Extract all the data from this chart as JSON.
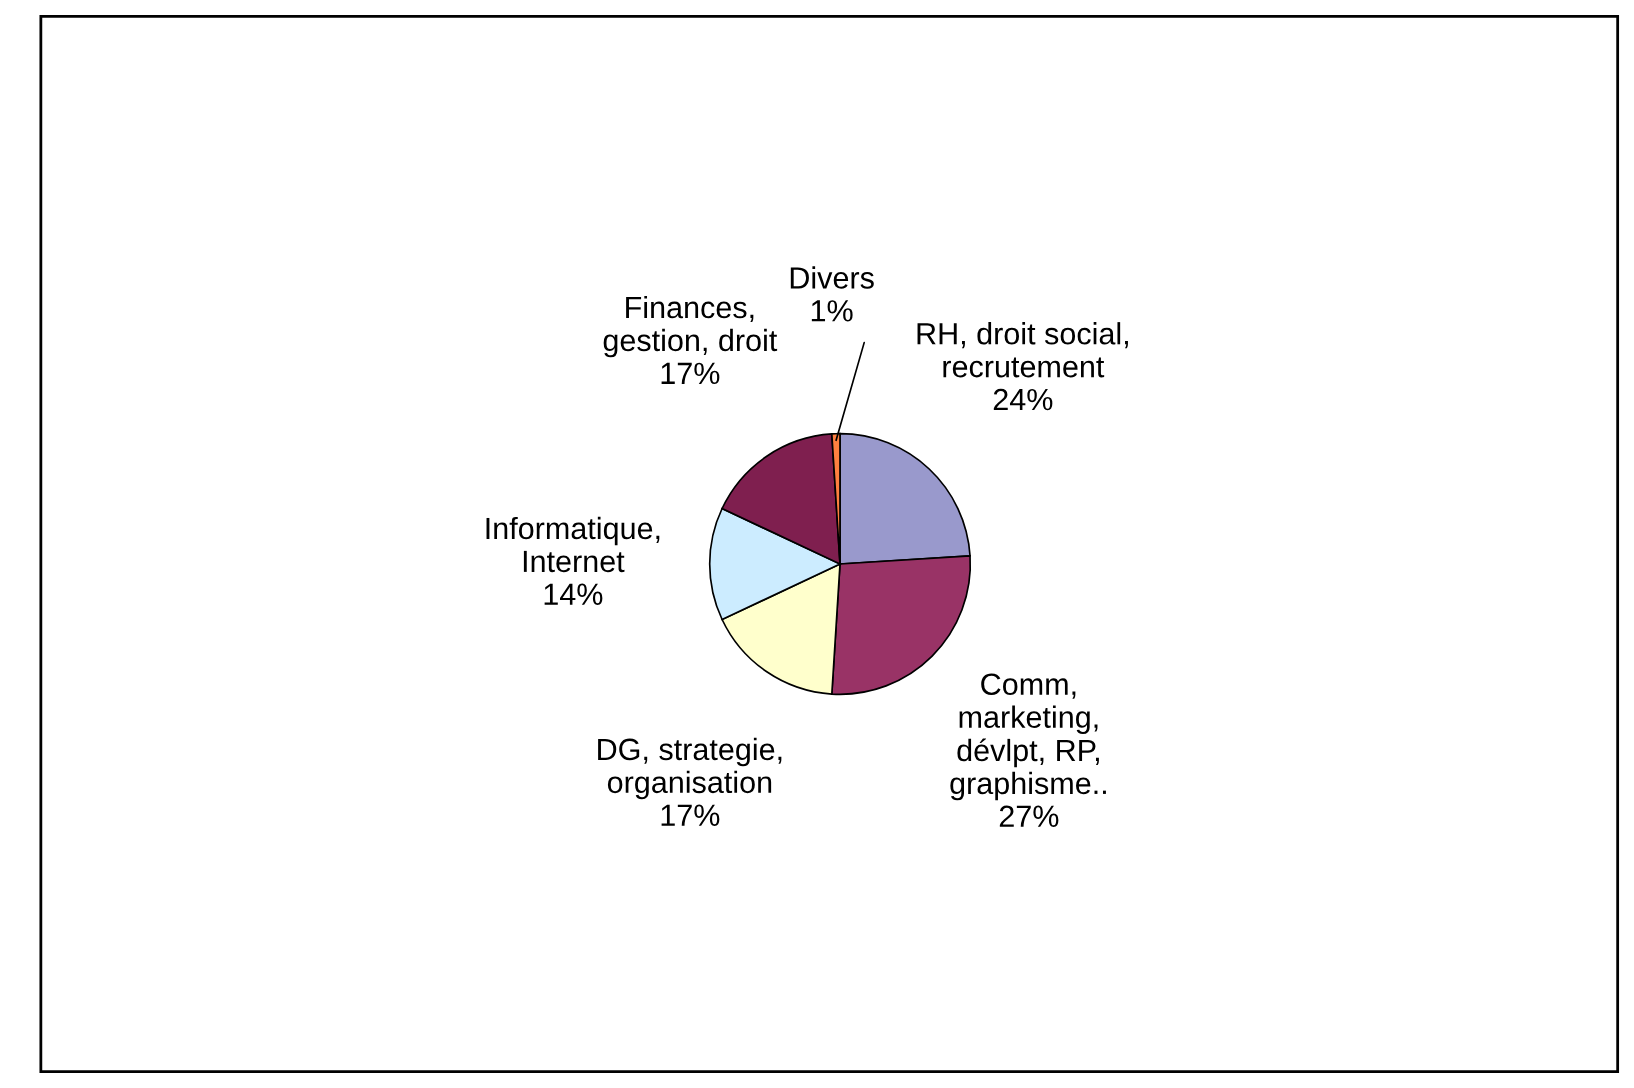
{
  "chart_data": {
    "type": "pie",
    "categories": [
      "RH, droit social,\nrecrutement",
      "Comm,\nmarketing,\ndévlpt, RP,\ngraphisme..",
      "DG, strategie,\norganisation",
      "Informatique,\nInternet",
      "Finances,\ngestion, droit",
      "Divers"
    ],
    "values": [
      24,
      27,
      17,
      14,
      17,
      1
    ],
    "value_labels": [
      "24%",
      "27%",
      "17%",
      "14%",
      "17%",
      "1%"
    ],
    "colors": [
      "#9999cc",
      "#993366",
      "#ffffcc",
      "#ccecff",
      "#7f1f4f",
      "#ff8040"
    ],
    "legend": false
  }
}
